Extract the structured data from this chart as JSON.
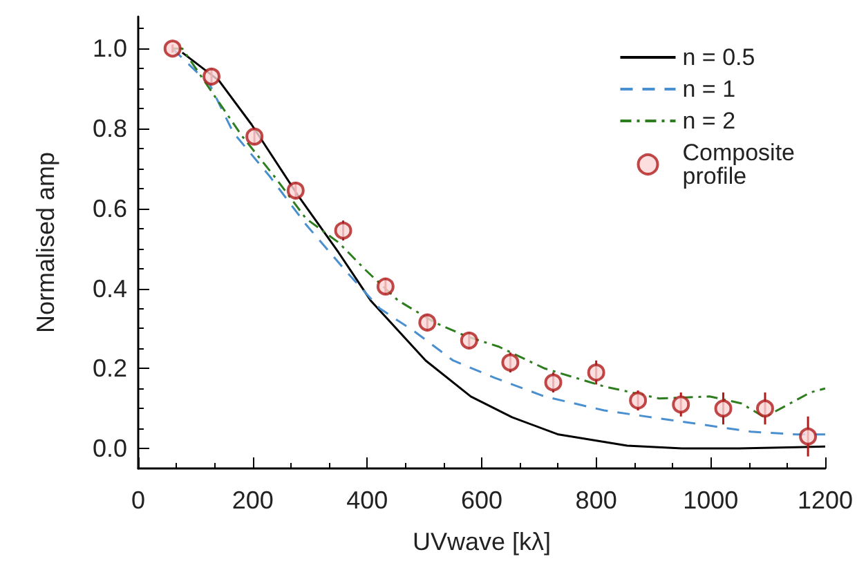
{
  "chart_data": {
    "type": "line",
    "xlabel": "UVwave [kλ]",
    "ylabel": "Normalised amp",
    "xlim": [
      0,
      1200
    ],
    "xticks": [
      0,
      200,
      400,
      600,
      800,
      1000,
      1200
    ],
    "ylim": [
      -0.05,
      1.08
    ],
    "yticks": [
      {
        "value": 0,
        "label": "0.0"
      },
      0.2,
      0.4,
      0.6,
      0.8,
      {
        "value": 1,
        "label": "1.0"
      }
    ],
    "grid": false,
    "legend": "top right",
    "series": [
      {
        "name": "n = 0.5",
        "color": "#000000",
        "line_style": "solid",
        "marker": "none",
        "x": [
          77,
          141,
          198,
          278,
          350,
          406,
          502,
          581,
          653,
          734,
          854,
          950,
          1050,
          1150,
          1200
        ],
        "values": [
          0.99,
          0.92,
          0.81,
          0.635,
          0.49,
          0.37,
          0.22,
          0.13,
          0.078,
          0.035,
          0.007,
          0.0,
          0.0,
          0.003,
          0.005
        ]
      },
      {
        "name": "n = 1",
        "color": "#4a90d0",
        "line_style": "dashed",
        "marker": "none",
        "x": [
          60,
          125,
          166,
          230,
          293,
          365,
          422,
          485,
          550,
          622,
          710,
          814,
          950,
          1070,
          1150,
          1200
        ],
        "values": [
          1.0,
          0.91,
          0.79,
          0.68,
          0.56,
          0.44,
          0.35,
          0.29,
          0.22,
          0.177,
          0.13,
          0.095,
          0.067,
          0.042,
          0.035,
          0.035
        ]
      },
      {
        "name": "n = 2",
        "color": "#2e7d1e",
        "line_style": "dashdot",
        "marker": "none",
        "x": [
          60,
          77,
          134,
          182,
          238,
          293,
          350,
          398,
          454,
          518,
          574,
          629,
          710,
          814,
          910,
          998,
          1053,
          1094,
          1174,
          1200
        ],
        "values": [
          1.0,
          1.0,
          0.88,
          0.78,
          0.68,
          0.575,
          0.515,
          0.445,
          0.37,
          0.315,
          0.28,
          0.255,
          0.2,
          0.155,
          0.125,
          0.13,
          0.113,
          0.078,
          0.14,
          0.15
        ]
      },
      {
        "name": "Composite\nprofile",
        "type": "scatter",
        "color": "#b01c1c",
        "marker": "circle",
        "x": [
          60,
          128,
          203,
          275,
          358,
          432,
          505,
          578,
          650,
          725,
          800,
          873,
          948,
          1022,
          1095,
          1170
        ],
        "values": [
          1.0,
          0.93,
          0.78,
          0.645,
          0.545,
          0.405,
          0.315,
          0.27,
          0.215,
          0.165,
          0.19,
          0.12,
          0.11,
          0.1,
          0.1,
          0.03
        ],
        "errors": [
          0.01,
          0.02,
          0.02,
          0.02,
          0.025,
          0.02,
          0.02,
          0.02,
          0.025,
          0.025,
          0.03,
          0.025,
          0.03,
          0.04,
          0.04,
          0.05
        ]
      }
    ]
  }
}
